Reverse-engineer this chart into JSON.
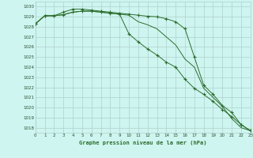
{
  "title": "Graphe pression niveau de la mer (hPa)",
  "background_color": "#cef5f0",
  "grid_color": "#b0d0cc",
  "line_color": "#2d6e2d",
  "xlim": [
    0,
    23
  ],
  "ylim": [
    1017.5,
    1030.5
  ],
  "yticks": [
    1018,
    1019,
    1020,
    1021,
    1022,
    1023,
    1024,
    1025,
    1026,
    1027,
    1028,
    1029,
    1030
  ],
  "xticks": [
    0,
    1,
    2,
    3,
    4,
    5,
    6,
    7,
    8,
    9,
    10,
    11,
    12,
    13,
    14,
    15,
    16,
    17,
    18,
    19,
    20,
    21,
    22,
    23
  ],
  "hours": [
    0,
    1,
    2,
    3,
    4,
    5,
    6,
    7,
    8,
    9,
    10,
    11,
    12,
    13,
    14,
    15,
    16,
    17,
    18,
    19,
    20,
    21,
    22,
    23
  ],
  "line_upper_marked": [
    1028.3,
    1029.1,
    1029.1,
    1029.45,
    1029.75,
    1029.75,
    1029.65,
    1029.55,
    1029.45,
    1029.35,
    1029.25,
    1029.15,
    1029.05,
    1029.0,
    1028.8,
    1028.5,
    1027.8,
    1025.0,
    1022.2,
    1021.3,
    1020.2,
    1019.5,
    1018.3,
    1017.7
  ],
  "line_lower_marked": [
    1028.3,
    1029.1,
    1029.1,
    1029.2,
    1029.45,
    1029.55,
    1029.55,
    1029.45,
    1029.35,
    1029.25,
    1027.3,
    1026.5,
    1025.8,
    1025.2,
    1024.5,
    1024.0,
    1022.8,
    1021.9,
    1021.3,
    1020.6,
    1019.8,
    1019.1,
    1018.3,
    1017.7
  ],
  "line_middle_plain": [
    1028.3,
    1029.1,
    1029.1,
    1029.2,
    1029.45,
    1029.55,
    1029.55,
    1029.45,
    1029.35,
    1029.25,
    1029.15,
    1028.5,
    1028.2,
    1027.8,
    1027.0,
    1026.2,
    1024.8,
    1024.0,
    1021.9,
    1021.0,
    1020.1,
    1018.9,
    1018.0,
    1017.7
  ]
}
